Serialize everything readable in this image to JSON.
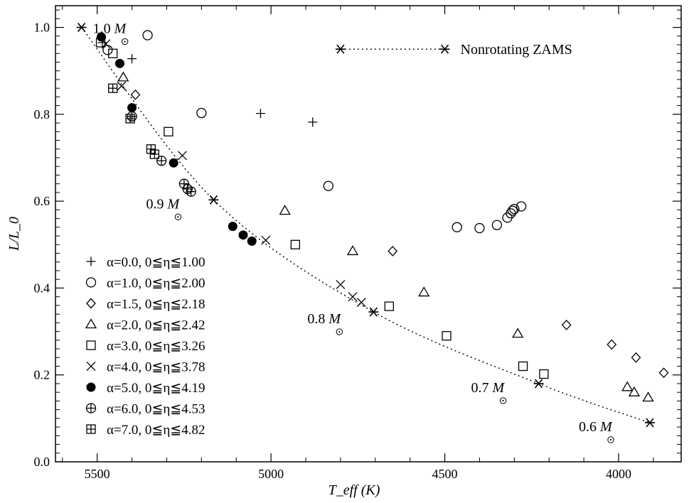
{
  "chart_data": {
    "type": "scatter",
    "title": "",
    "xlabel": "T_eff (K)",
    "ylabel": "L/L_0",
    "xlim": [
      5620,
      3820
    ],
    "ylim": [
      0.0,
      1.05
    ],
    "x_ticks": [
      "5500",
      "5000",
      "4500",
      "4000"
    ],
    "y_ticks": [
      "0.0",
      "0.2",
      "0.4",
      "0.6",
      "0.8",
      "1.0"
    ],
    "legend_position": "bottom-left",
    "zams_label": "Nonrotating ZAMS",
    "zams": [
      {
        "x": 5545,
        "y": 1.0,
        "label": "1.0"
      },
      {
        "x": 5165,
        "y": 0.603,
        "label": "0.9"
      },
      {
        "x": 4705,
        "y": 0.345,
        "label": "0.8"
      },
      {
        "x": 4230,
        "y": 0.18,
        "label": "0.7"
      },
      {
        "x": 3910,
        "y": 0.09,
        "label": "0.6"
      }
    ],
    "mass_unit": "M",
    "series": [
      {
        "name": "α=0.0, 0≦η≦1.00",
        "marker": "plus",
        "points": [
          [
            5485,
            0.965
          ],
          [
            5400,
            0.928
          ],
          [
            5030,
            0.802
          ],
          [
            4880,
            0.782
          ]
        ]
      },
      {
        "name": "α=1.0, 0≦η≦2.00",
        "marker": "circle",
        "points": [
          [
            5470,
            0.948
          ],
          [
            5355,
            0.982
          ],
          [
            5200,
            0.803
          ],
          [
            4835,
            0.635
          ],
          [
            4465,
            0.54
          ],
          [
            4400,
            0.538
          ],
          [
            4350,
            0.545
          ],
          [
            4320,
            0.562
          ],
          [
            4310,
            0.572
          ],
          [
            4305,
            0.578
          ],
          [
            4300,
            0.582
          ],
          [
            4280,
            0.588
          ]
        ]
      },
      {
        "name": "α=1.5, 0≦η≦2.18",
        "marker": "diamond",
        "points": [
          [
            5390,
            0.845
          ],
          [
            4650,
            0.485
          ],
          [
            4150,
            0.315
          ],
          [
            4020,
            0.27
          ],
          [
            3950,
            0.24
          ],
          [
            3870,
            0.205
          ]
        ]
      },
      {
        "name": "α=2.0, 0≦η≦2.42",
        "marker": "triangle",
        "points": [
          [
            5425,
            0.885
          ],
          [
            4960,
            0.578
          ],
          [
            4765,
            0.485
          ],
          [
            4560,
            0.39
          ],
          [
            4290,
            0.295
          ],
          [
            3975,
            0.172
          ],
          [
            3955,
            0.16
          ],
          [
            3915,
            0.148
          ]
        ]
      },
      {
        "name": "α=3.0, 0≦η≦3.26",
        "marker": "square",
        "points": [
          [
            5490,
            0.965
          ],
          [
            5455,
            0.94
          ],
          [
            5295,
            0.76
          ],
          [
            4930,
            0.5
          ],
          [
            4660,
            0.358
          ],
          [
            4495,
            0.29
          ],
          [
            4275,
            0.22
          ],
          [
            4215,
            0.202
          ]
        ]
      },
      {
        "name": "α=4.0, 0≦η≦3.78",
        "marker": "x",
        "points": [
          [
            5475,
            0.962
          ],
          [
            5430,
            0.865
          ],
          [
            5255,
            0.705
          ],
          [
            5015,
            0.51
          ],
          [
            4800,
            0.408
          ],
          [
            4765,
            0.38
          ],
          [
            4740,
            0.367
          ]
        ]
      },
      {
        "name": "α=5.0, 0≦η≦4.19",
        "marker": "filled",
        "points": [
          [
            5488,
            0.978
          ],
          [
            5435,
            0.917
          ],
          [
            5400,
            0.815
          ],
          [
            5280,
            0.688
          ],
          [
            5110,
            0.542
          ],
          [
            5080,
            0.522
          ],
          [
            5055,
            0.508
          ]
        ]
      },
      {
        "name": "α=6.0, 0≦η≦4.53",
        "marker": "circleplus",
        "points": [
          [
            5400,
            0.795
          ],
          [
            5315,
            0.693
          ],
          [
            5250,
            0.64
          ],
          [
            5240,
            0.628
          ],
          [
            5230,
            0.622
          ]
        ]
      },
      {
        "name": "α=7.0, 0≦η≦4.82",
        "marker": "squareplus",
        "points": [
          [
            5455,
            0.86
          ],
          [
            5405,
            0.79
          ],
          [
            5345,
            0.72
          ],
          [
            5335,
            0.708
          ]
        ]
      }
    ]
  }
}
